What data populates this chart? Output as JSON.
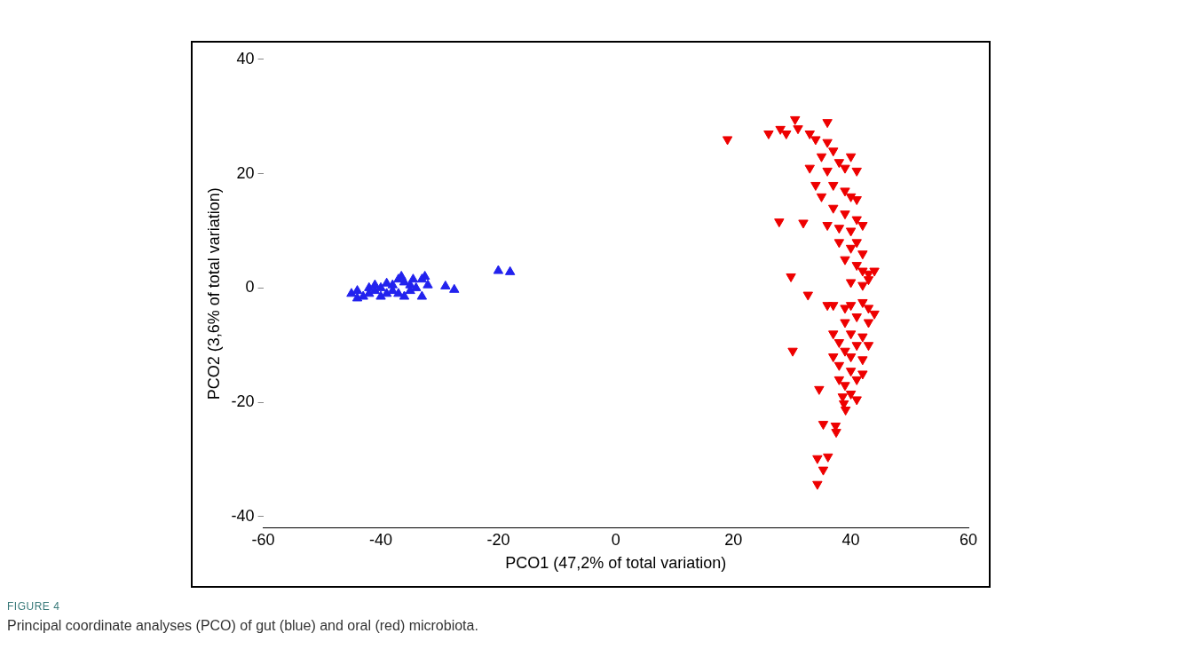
{
  "chart_data": {
    "type": "scatter",
    "xlabel": "PCO1 (47,2% of total variation)",
    "ylabel": "PCO2 (3,6% of total variation)",
    "xlim": [
      -60,
      60
    ],
    "xticks": [
      -60,
      -40,
      -20,
      0,
      20,
      40,
      60
    ],
    "ylim": [
      -42,
      40
    ],
    "yticks": [
      -40,
      -20,
      0,
      20,
      40
    ],
    "grid": false,
    "legend": false,
    "tick_labels": "xy",
    "annotations": [
      "FIGURE 4",
      "Principal coordinate analyses (PCO) of gut (blue) and oral (red) microbiota."
    ],
    "series": [
      {
        "color": "#2222ee",
        "marker": "triangle",
        "x": [
          -45,
          -44,
          -43,
          -42,
          -41,
          -40,
          -39,
          -38,
          -37,
          -36,
          -42,
          -40,
          -38,
          -37,
          -36,
          -35,
          -44,
          -41,
          -39,
          -36.5,
          -35,
          -34.5,
          -32.5,
          -33,
          -34,
          -32,
          -33,
          -29,
          -27.5,
          -20,
          -18
        ],
        "values": [
          -1,
          -0.5,
          -1.5,
          -1,
          -0.5,
          -1.5,
          -1,
          -0.5,
          -1,
          -1.5,
          0,
          0,
          0.5,
          1.5,
          1,
          0.5,
          -1.8,
          0.5,
          0.8,
          2,
          -0.5,
          1.5,
          2,
          1.5,
          0,
          0.5,
          -1.5,
          0.3,
          -0.3,
          3,
          2.8
        ]
      },
      {
        "color": "#ee0000",
        "marker": "triangle-down",
        "x": [
          19,
          26,
          28,
          30.5,
          29,
          31,
          27.8,
          31.9,
          29.8,
          32.7,
          30.1,
          34.6,
          35.3,
          34.3,
          36.1,
          35.3,
          34.3,
          37.5,
          37.4,
          38.8,
          39.1,
          38.6,
          36,
          33,
          34,
          36,
          37,
          35,
          38,
          40,
          33,
          36,
          39,
          41,
          34,
          37,
          39,
          40,
          41,
          35,
          37,
          39,
          41,
          36,
          38,
          40,
          42,
          38,
          40,
          41,
          42,
          39,
          41,
          42,
          43,
          44,
          40,
          42,
          43,
          36,
          37,
          39,
          40,
          42,
          43,
          44,
          43,
          41,
          39,
          40,
          42,
          37,
          38,
          41,
          43,
          39,
          40,
          42,
          37,
          38,
          40,
          41,
          42,
          39,
          40,
          41,
          38
        ],
        "values": [
          26,
          27,
          27.8,
          29.5,
          27,
          27.9,
          11.6,
          11.4,
          2,
          -1.2,
          -11,
          -17.7,
          -23.8,
          -29.8,
          -29.5,
          -31.8,
          -34.3,
          -25.2,
          -24.1,
          -20.2,
          -21.3,
          -19,
          29,
          27,
          26,
          25.5,
          24,
          23,
          22,
          23,
          21,
          20.5,
          21,
          20.5,
          18,
          18,
          17,
          16,
          15.5,
          16,
          14,
          13,
          12,
          11,
          10.5,
          10,
          11,
          8,
          7,
          8,
          6,
          5,
          4,
          3,
          2.5,
          3,
          1,
          0.5,
          1.5,
          -3,
          -3,
          -3.5,
          -3,
          -2.5,
          -3.5,
          -4.5,
          -6,
          -5,
          -6,
          -8,
          -8.5,
          -8,
          -9.5,
          -10,
          -10,
          -11,
          -12,
          -12.5,
          -12,
          -13.5,
          -14.5,
          -16,
          -15,
          -17,
          -18.5,
          -19.5,
          -16
        ]
      }
    ]
  }
}
